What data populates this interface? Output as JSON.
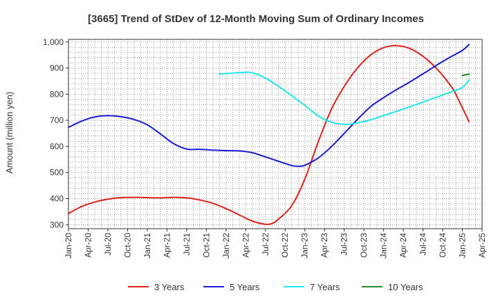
{
  "chart_data": {
    "type": "line",
    "title": "[3665]  Trend of StDev of 12-Month Moving Sum of Ordinary Incomes",
    "xlabel": "",
    "ylabel": "Amount (million yen)",
    "ylim": [
      285,
      1010
    ],
    "yticks": [
      300,
      400,
      500,
      600,
      700,
      800,
      900,
      1000
    ],
    "ytick_labels": [
      "300",
      "400",
      "500",
      "600",
      "700",
      "800",
      "900",
      "1,000"
    ],
    "xticks": [
      "Jan-20",
      "Apr-20",
      "Jul-20",
      "Oct-20",
      "Jan-21",
      "Apr-21",
      "Jul-21",
      "Oct-21",
      "Jan-22",
      "Apr-22",
      "Jul-22",
      "Oct-22",
      "Jan-23",
      "Apr-23",
      "Jul-23",
      "Oct-23",
      "Jan-24",
      "Apr-24",
      "Jul-24",
      "Oct-24",
      "Jan-25",
      "Apr-25"
    ],
    "x_range": [
      "Jan-20",
      "Apr-25"
    ],
    "grid": true,
    "legend_position": "bottom",
    "series": [
      {
        "name": "3 Years",
        "color": "#e0201b",
        "points": [
          [
            "Jan-20",
            343
          ],
          [
            "Mar-20",
            370
          ],
          [
            "May-20",
            387
          ],
          [
            "Jul-20",
            398
          ],
          [
            "Sep-20",
            404
          ],
          [
            "Nov-20",
            405
          ],
          [
            "Jan-21",
            404
          ],
          [
            "Mar-21",
            403
          ],
          [
            "May-21",
            405
          ],
          [
            "Jul-21",
            403
          ],
          [
            "Sep-21",
            395
          ],
          [
            "Nov-21",
            382
          ],
          [
            "Jan-22",
            362
          ],
          [
            "Mar-22",
            338
          ],
          [
            "May-22",
            314
          ],
          [
            "Jul-22",
            302
          ],
          [
            "Aug-22",
            305
          ],
          [
            "Sep-22",
            322
          ],
          [
            "Nov-22",
            373
          ],
          [
            "Jan-23",
            475
          ],
          [
            "Mar-23",
            615
          ],
          [
            "May-23",
            740
          ],
          [
            "Jul-23",
            830
          ],
          [
            "Sep-23",
            900
          ],
          [
            "Nov-23",
            950
          ],
          [
            "Jan-24",
            978
          ],
          [
            "Mar-24",
            986
          ],
          [
            "May-24",
            975
          ],
          [
            "Jul-24",
            945
          ],
          [
            "Sep-24",
            900
          ],
          [
            "Nov-24",
            840
          ],
          [
            "Dec-24",
            800
          ],
          [
            "Feb-25",
            695
          ]
        ]
      },
      {
        "name": "5 Years",
        "color": "#1a1ad6",
        "points": [
          [
            "Jan-20",
            673
          ],
          [
            "Mar-20",
            697
          ],
          [
            "May-20",
            713
          ],
          [
            "Jul-20",
            718
          ],
          [
            "Sep-20",
            714
          ],
          [
            "Nov-20",
            703
          ],
          [
            "Jan-21",
            683
          ],
          [
            "Mar-21",
            648
          ],
          [
            "May-21",
            611
          ],
          [
            "Jul-21",
            590
          ],
          [
            "Sep-21",
            589
          ],
          [
            "Nov-21",
            586
          ],
          [
            "Jan-22",
            584
          ],
          [
            "Mar-22",
            583
          ],
          [
            "May-22",
            576
          ],
          [
            "Jul-22",
            560
          ],
          [
            "Sep-22",
            543
          ],
          [
            "Nov-22",
            527
          ],
          [
            "Dec-22",
            524
          ],
          [
            "Jan-23",
            528
          ],
          [
            "Mar-23",
            555
          ],
          [
            "May-23",
            598
          ],
          [
            "Jul-23",
            650
          ],
          [
            "Sep-23",
            703
          ],
          [
            "Nov-23",
            752
          ],
          [
            "Jan-24",
            787
          ],
          [
            "Mar-24",
            818
          ],
          [
            "May-24",
            847
          ],
          [
            "Jul-24",
            878
          ],
          [
            "Sep-24",
            910
          ],
          [
            "Nov-24",
            940
          ],
          [
            "Jan-25",
            968
          ],
          [
            "Feb-25",
            990
          ]
        ]
      },
      {
        "name": "7 Years",
        "color": "#1ee8f0",
        "points": [
          [
            "Dec-21",
            877
          ],
          [
            "Feb-22",
            881
          ],
          [
            "Apr-22",
            884
          ],
          [
            "May-22",
            882
          ],
          [
            "Jul-22",
            862
          ],
          [
            "Sep-22",
            830
          ],
          [
            "Nov-22",
            795
          ],
          [
            "Jan-23",
            757
          ],
          [
            "Mar-23",
            718
          ],
          [
            "May-23",
            693
          ],
          [
            "Jul-23",
            685
          ],
          [
            "Sep-23",
            690
          ],
          [
            "Nov-23",
            702
          ],
          [
            "Jan-24",
            718
          ],
          [
            "Mar-24",
            735
          ],
          [
            "May-24",
            752
          ],
          [
            "Jul-24",
            770
          ],
          [
            "Sep-24",
            788
          ],
          [
            "Nov-24",
            806
          ],
          [
            "Jan-25",
            826
          ],
          [
            "Feb-25",
            855
          ]
        ]
      },
      {
        "name": "10 Years",
        "color": "#228b22",
        "points": [
          [
            "Jan-25",
            872
          ],
          [
            "Feb-25",
            877
          ]
        ]
      }
    ]
  }
}
